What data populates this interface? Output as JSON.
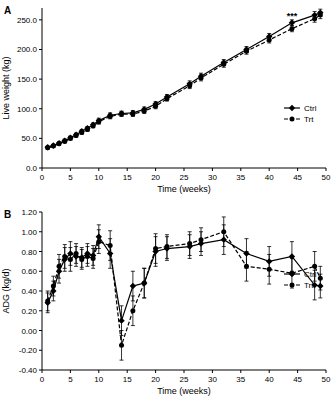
{
  "chart_data": [
    {
      "type": "line",
      "title": "A",
      "x_label": "Time (weeks)",
      "y_label": "Live weight (kg)",
      "x": [
        1,
        2,
        3,
        4,
        5,
        6,
        7,
        8,
        9,
        10,
        12,
        14,
        16,
        18,
        20,
        22,
        26,
        28,
        32,
        36,
        40,
        44,
        48,
        49
      ],
      "series": [
        {
          "name": "Ctrl",
          "color": "#000000",
          "marker": "diamond",
          "line_style": "solid",
          "values": [
            35,
            38,
            42,
            46,
            51,
            56,
            62,
            67,
            73,
            80,
            89,
            92,
            93,
            99,
            108,
            120,
            142,
            155,
            178,
            200,
            222,
            245,
            258,
            262
          ],
          "errors": [
            2,
            2,
            2,
            3,
            3,
            3,
            3,
            3,
            3,
            4,
            4,
            4,
            4,
            4,
            4,
            4,
            5,
            5,
            5,
            5,
            5,
            5,
            6,
            6
          ]
        },
        {
          "name": "Trt",
          "color": "#000000",
          "marker": "circle",
          "line_style": "dashed",
          "values": [
            34,
            37,
            41,
            45,
            50,
            55,
            60,
            65,
            71,
            78,
            87,
            91,
            91,
            96,
            104,
            117,
            139,
            152,
            175,
            197,
            216,
            235,
            252,
            258
          ],
          "errors": [
            2,
            2,
            2,
            3,
            3,
            3,
            3,
            3,
            3,
            4,
            4,
            4,
            4,
            4,
            4,
            4,
            5,
            5,
            5,
            5,
            5,
            5,
            6,
            6
          ]
        }
      ],
      "annotations": [
        {
          "text": "***",
          "x": 44,
          "y": 252
        }
      ],
      "xlim": [
        0,
        50
      ],
      "xticks": [
        0,
        5,
        10,
        15,
        20,
        25,
        30,
        35,
        40,
        45,
        50
      ],
      "ylim": [
        0,
        270
      ],
      "yticks": [
        {
          "value": 0,
          "label": "0.0"
        },
        {
          "value": 50,
          "label": "50.0"
        },
        {
          "value": 100,
          "label": "100.0"
        },
        {
          "value": 150,
          "label": "150.0"
        },
        {
          "value": 200,
          "label": "200.0"
        },
        {
          "value": 250,
          "label": "250.0"
        }
      ],
      "grid": false,
      "legend": "right"
    },
    {
      "type": "line",
      "title": "B",
      "x_label": "Time (weeks)",
      "y_label": "ADG (kg/d)",
      "x": [
        1,
        2,
        3,
        4,
        5,
        6,
        7,
        8,
        9,
        10,
        12,
        14,
        16,
        18,
        20,
        22,
        26,
        28,
        32,
        36,
        40,
        44,
        48,
        49
      ],
      "series": [
        {
          "name": "Ctrl",
          "color": "#000000",
          "marker": "diamond",
          "line_style": "solid",
          "values": [
            0.28,
            0.4,
            0.6,
            0.72,
            0.78,
            0.75,
            0.74,
            0.78,
            0.76,
            0.95,
            0.78,
            0.1,
            0.45,
            0.48,
            0.8,
            0.83,
            0.85,
            0.88,
            0.92,
            0.78,
            0.7,
            0.75,
            0.46,
            0.45
          ],
          "errors": [
            0.1,
            0.1,
            0.12,
            0.12,
            0.12,
            0.1,
            0.1,
            0.1,
            0.1,
            0.12,
            0.15,
            0.15,
            0.15,
            0.15,
            0.15,
            0.12,
            0.12,
            0.12,
            0.15,
            0.15,
            0.15,
            0.15,
            0.15,
            0.12
          ]
        },
        {
          "name": "Trt",
          "color": "#000000",
          "marker": "circle",
          "line_style": "dashed",
          "values": [
            0.3,
            0.45,
            0.65,
            0.75,
            0.72,
            0.78,
            0.72,
            0.75,
            0.73,
            0.9,
            0.86,
            -0.15,
            0.2,
            0.48,
            0.83,
            0.85,
            0.88,
            0.92,
            1.0,
            0.65,
            0.62,
            0.58,
            0.65,
            0.53
          ],
          "errors": [
            0.1,
            0.1,
            0.12,
            0.12,
            0.12,
            0.1,
            0.1,
            0.1,
            0.1,
            0.12,
            0.15,
            0.15,
            0.15,
            0.15,
            0.15,
            0.12,
            0.12,
            0.12,
            0.15,
            0.15,
            0.15,
            0.15,
            0.15,
            0.12
          ]
        }
      ],
      "xlim": [
        0,
        50
      ],
      "xticks": [
        0,
        5,
        10,
        15,
        20,
        25,
        30,
        35,
        40,
        45,
        50
      ],
      "ylim": [
        -0.4,
        1.2
      ],
      "yticks": [
        {
          "value": -0.4,
          "label": "-0.40"
        },
        {
          "value": -0.2,
          "label": "-0.20"
        },
        {
          "value": 0,
          "label": "0.00"
        },
        {
          "value": 0.2,
          "label": "0.20"
        },
        {
          "value": 0.4,
          "label": "0.40"
        },
        {
          "value": 0.6,
          "label": "0.60"
        },
        {
          "value": 0.8,
          "label": "0.80"
        },
        {
          "value": 1.0,
          "label": "1.00"
        },
        {
          "value": 1.2,
          "label": "1.20"
        }
      ],
      "grid": false,
      "legend": "upper right"
    }
  ]
}
